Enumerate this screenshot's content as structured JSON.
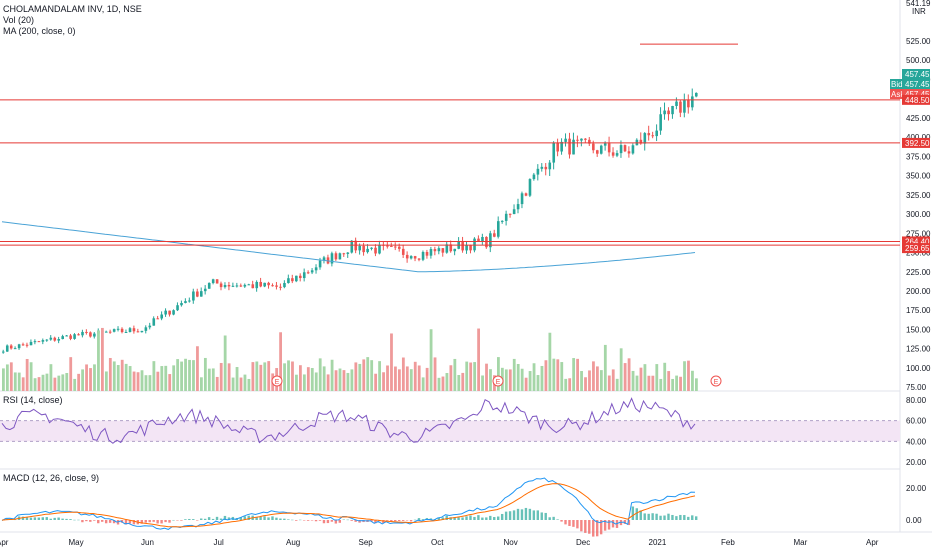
{
  "symbol_line": "CHOLAMANDALAM INV, 1D, NSE",
  "indicators": {
    "vol": "Vol (20)",
    "ma": "MA (200, close, 0)",
    "rsi": "RSI (14, close)",
    "macd": "MACD (12, 26, close, 9)"
  },
  "currency": "INR",
  "price_scale": {
    "top_tick": "541.19",
    "ticks": [
      "525.00",
      "500.00",
      "475.00",
      "425.00",
      "400.00",
      "375.00",
      "350.00",
      "325.00",
      "300.00",
      "275.00",
      "250.00",
      "225.00",
      "200.00",
      "175.00",
      "150.00",
      "125.00",
      "100.00",
      "75.00"
    ]
  },
  "price_labels": {
    "last": "457.45",
    "bid_tag": "Bid",
    "bid": "457.45",
    "ask_tag": "Ask",
    "ask": "457.45",
    "level_448": "448.50",
    "level_392": "392.50",
    "level_264": "264.40",
    "level_259": "259.65"
  },
  "rsi_scale": [
    "80.00",
    "60.00",
    "40.00",
    "20.00"
  ],
  "macd_scale": [
    "20.00",
    "0.00"
  ],
  "time_axis": [
    "Apr",
    "May",
    "Jun",
    "Jul",
    "Aug",
    "Sep",
    "Oct",
    "Nov",
    "Dec",
    "2021",
    "Feb",
    "Mar",
    "Apr"
  ],
  "earnings_marker": "E",
  "colors": {
    "up": "#26a69a",
    "down": "#ef5350",
    "vol_up": "#a5d6a7",
    "vol_down": "#ef9a9a",
    "ma_line": "#4aa3d6",
    "hline": "#e53935",
    "rsi_line": "#7e57c2",
    "rsi_band": "#f3e5f5",
    "macd_line": "#2196f3",
    "signal_line": "#ff6d00",
    "last_price": "#26a69a"
  },
  "chart_data": {
    "type": "candlestick",
    "series_close_anchors": {
      "x": [
        "Apr",
        "May",
        "Jun",
        "Jul",
        "Aug",
        "Sep",
        "Oct",
        "Nov",
        "Dec",
        "2021",
        "Feb"
      ],
      "close": [
        125,
        142,
        150,
        210,
        205,
        258,
        248,
        265,
        390,
        380,
        457.45
      ]
    },
    "last_close": 457.45,
    "horizontal_levels": [
      448.5,
      392.5,
      264.4,
      259.65
    ],
    "ma200": {
      "start": 290,
      "min": 225,
      "end": 250
    },
    "rsi_range": [
      20,
      80
    ],
    "rsi_band": [
      40,
      60
    ],
    "macd_range": [
      -5,
      30
    ]
  }
}
